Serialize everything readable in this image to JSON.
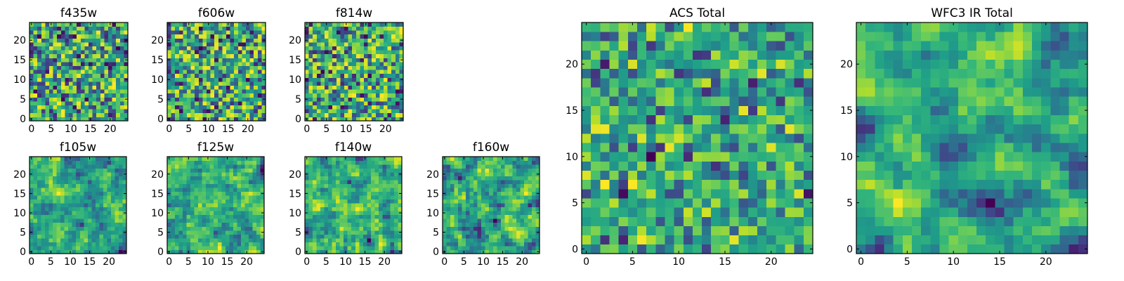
{
  "chart_data": [
    {
      "type": "heatmap",
      "title": "f435w",
      "pattern": "noise",
      "seed": 11,
      "grid_size": 25,
      "xticks": [
        0,
        5,
        10,
        15,
        20
      ],
      "yticks": [
        0,
        5,
        10,
        15,
        20
      ],
      "xlim": [
        -0.5,
        24.5
      ],
      "ylim": [
        -0.5,
        24.5
      ],
      "colormap": "viridis"
    },
    {
      "type": "heatmap",
      "title": "f606w",
      "pattern": "noise",
      "seed": 23,
      "grid_size": 25,
      "xticks": [
        0,
        5,
        10,
        15,
        20
      ],
      "yticks": [
        0,
        5,
        10,
        15,
        20
      ],
      "xlim": [
        -0.5,
        24.5
      ],
      "ylim": [
        -0.5,
        24.5
      ],
      "colormap": "viridis"
    },
    {
      "type": "heatmap",
      "title": "f814w",
      "pattern": "noise",
      "seed": 37,
      "grid_size": 25,
      "xticks": [
        0,
        5,
        10,
        15,
        20
      ],
      "yticks": [
        0,
        5,
        10,
        15,
        20
      ],
      "xlim": [
        -0.5,
        24.5
      ],
      "ylim": [
        -0.5,
        24.5
      ],
      "colormap": "viridis"
    },
    {
      "type": "heatmap",
      "title": "f105w",
      "pattern": "smooth",
      "seed": 41,
      "grid_size": 25,
      "xticks": [
        0,
        5,
        10,
        15,
        20
      ],
      "yticks": [
        0,
        5,
        10,
        15,
        20
      ],
      "xlim": [
        -0.5,
        24.5
      ],
      "ylim": [
        -0.5,
        24.5
      ],
      "colormap": "viridis"
    },
    {
      "type": "heatmap",
      "title": "f125w",
      "pattern": "smooth",
      "seed": 53,
      "grid_size": 25,
      "xticks": [
        0,
        5,
        10,
        15,
        20
      ],
      "yticks": [
        0,
        5,
        10,
        15,
        20
      ],
      "xlim": [
        -0.5,
        24.5
      ],
      "ylim": [
        -0.5,
        24.5
      ],
      "colormap": "viridis"
    },
    {
      "type": "heatmap",
      "title": "f140w",
      "pattern": "smooth",
      "seed": 67,
      "grid_size": 25,
      "xticks": [
        0,
        5,
        10,
        15,
        20
      ],
      "yticks": [
        0,
        5,
        10,
        15,
        20
      ],
      "xlim": [
        -0.5,
        24.5
      ],
      "ylim": [
        -0.5,
        24.5
      ],
      "colormap": "viridis"
    },
    {
      "type": "heatmap",
      "title": "f160w",
      "pattern": "smooth",
      "seed": 79,
      "grid_size": 25,
      "xticks": [
        0,
        5,
        10,
        15,
        20
      ],
      "yticks": [
        0,
        5,
        10,
        15,
        20
      ],
      "xlim": [
        -0.5,
        24.5
      ],
      "ylim": [
        -0.5,
        24.5
      ],
      "colormap": "viridis"
    },
    {
      "type": "heatmap",
      "title": "ACS Total",
      "pattern": "sumnoise",
      "seed": 97,
      "grid_size": 25,
      "xticks": [
        0,
        5,
        10,
        15,
        20
      ],
      "yticks": [
        0,
        5,
        10,
        15,
        20
      ],
      "xlim": [
        -0.5,
        24.5
      ],
      "ylim": [
        -0.5,
        24.5
      ],
      "colormap": "viridis"
    },
    {
      "type": "heatmap",
      "title": "WFC3 IR Total",
      "pattern": "sumsmooth",
      "seed": 131,
      "grid_size": 25,
      "xticks": [
        0,
        5,
        10,
        15,
        20
      ],
      "yticks": [
        0,
        5,
        10,
        15,
        20
      ],
      "xlim": [
        -0.5,
        24.5
      ],
      "ylim": [
        -0.5,
        24.5
      ],
      "colormap": "viridis"
    }
  ],
  "colors": {
    "viridis_stops": [
      "#440154",
      "#482878",
      "#3e4989",
      "#31688e",
      "#26828e",
      "#1f9e89",
      "#35b779",
      "#6ece58",
      "#b5de2b",
      "#fde725"
    ],
    "frame": "#000000",
    "background": "#ffffff"
  }
}
